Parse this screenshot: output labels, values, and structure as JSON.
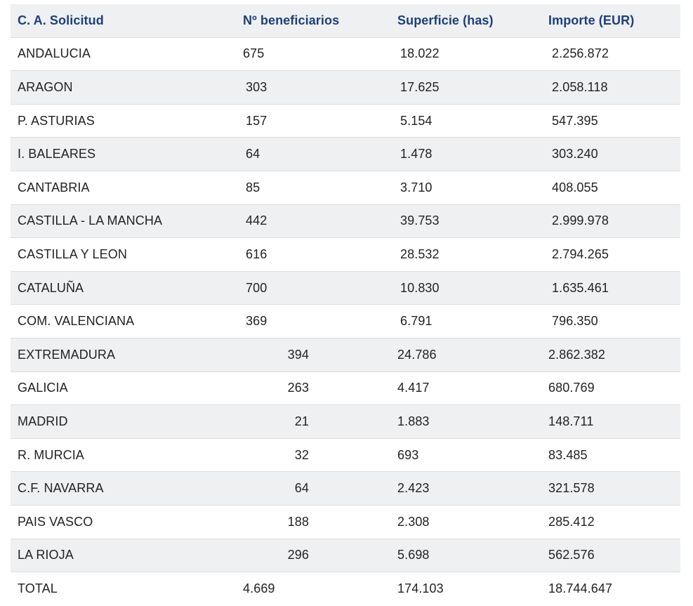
{
  "table": {
    "headers": [
      "C. A. Solicitud",
      "Nº beneficiarios",
      "Superficie (has)",
      "Importe (EUR)"
    ],
    "rows": [
      {
        "region": "ANDALUCIA",
        "beneficiarios": "675",
        "superficie": "18.022",
        "importe": "2.256.872"
      },
      {
        "region": "ARAGON",
        "beneficiarios": "303",
        "superficie": "17.625",
        "importe": "2.058.118"
      },
      {
        "region": "P. ASTURIAS",
        "beneficiarios": "157",
        "superficie": "5.154",
        "importe": "547.395"
      },
      {
        "region": "I. BALEARES",
        "beneficiarios": "64",
        "superficie": "1.478",
        "importe": "303.240"
      },
      {
        "region": "CANTABRIA",
        "beneficiarios": "85",
        "superficie": "3.710",
        "importe": "408.055"
      },
      {
        "region": "CASTILLA - LA MANCHA",
        "beneficiarios": "442",
        "superficie": "39.753",
        "importe": "2.999.978"
      },
      {
        "region": "CASTILLA Y LEON",
        "beneficiarios": "616",
        "superficie": "28.532",
        "importe": "2.794.265"
      },
      {
        "region": "CATALUÑA",
        "beneficiarios": "700",
        "superficie": "10.830",
        "importe": "1.635.461"
      },
      {
        "region": "COM. VALENCIANA",
        "beneficiarios": "369",
        "superficie": "6.791",
        "importe": "796.350"
      },
      {
        "region": "EXTREMADURA",
        "beneficiarios": "394",
        "superficie": "24.786",
        "importe": "2.862.382"
      },
      {
        "region": "GALICIA",
        "beneficiarios": "263",
        "superficie": "4.417",
        "importe": "680.769"
      },
      {
        "region": "MADRID",
        "beneficiarios": "21",
        "superficie": "1.883",
        "importe": "148.711"
      },
      {
        "region": "R. MURCIA",
        "beneficiarios": "32",
        "superficie": "693",
        "importe": "83.485"
      },
      {
        "region": "C.F. NAVARRA",
        "beneficiarios": "64",
        "superficie": "2.423",
        "importe": "321.578"
      },
      {
        "region": "PAIS VASCO",
        "beneficiarios": "188",
        "superficie": "2.308",
        "importe": "285.412"
      },
      {
        "region": "LA RIOJA",
        "beneficiarios": "296",
        "superficie": "5.698",
        "importe": "562.576"
      }
    ],
    "total": {
      "region": "TOTAL",
      "beneficiarios": "4.669",
      "superficie": "174.103",
      "importe": "18.744.647"
    }
  },
  "colors": {
    "header_text": "#1f3f7a",
    "stripe": "#eef0f2",
    "border": "#dcdcdc"
  }
}
